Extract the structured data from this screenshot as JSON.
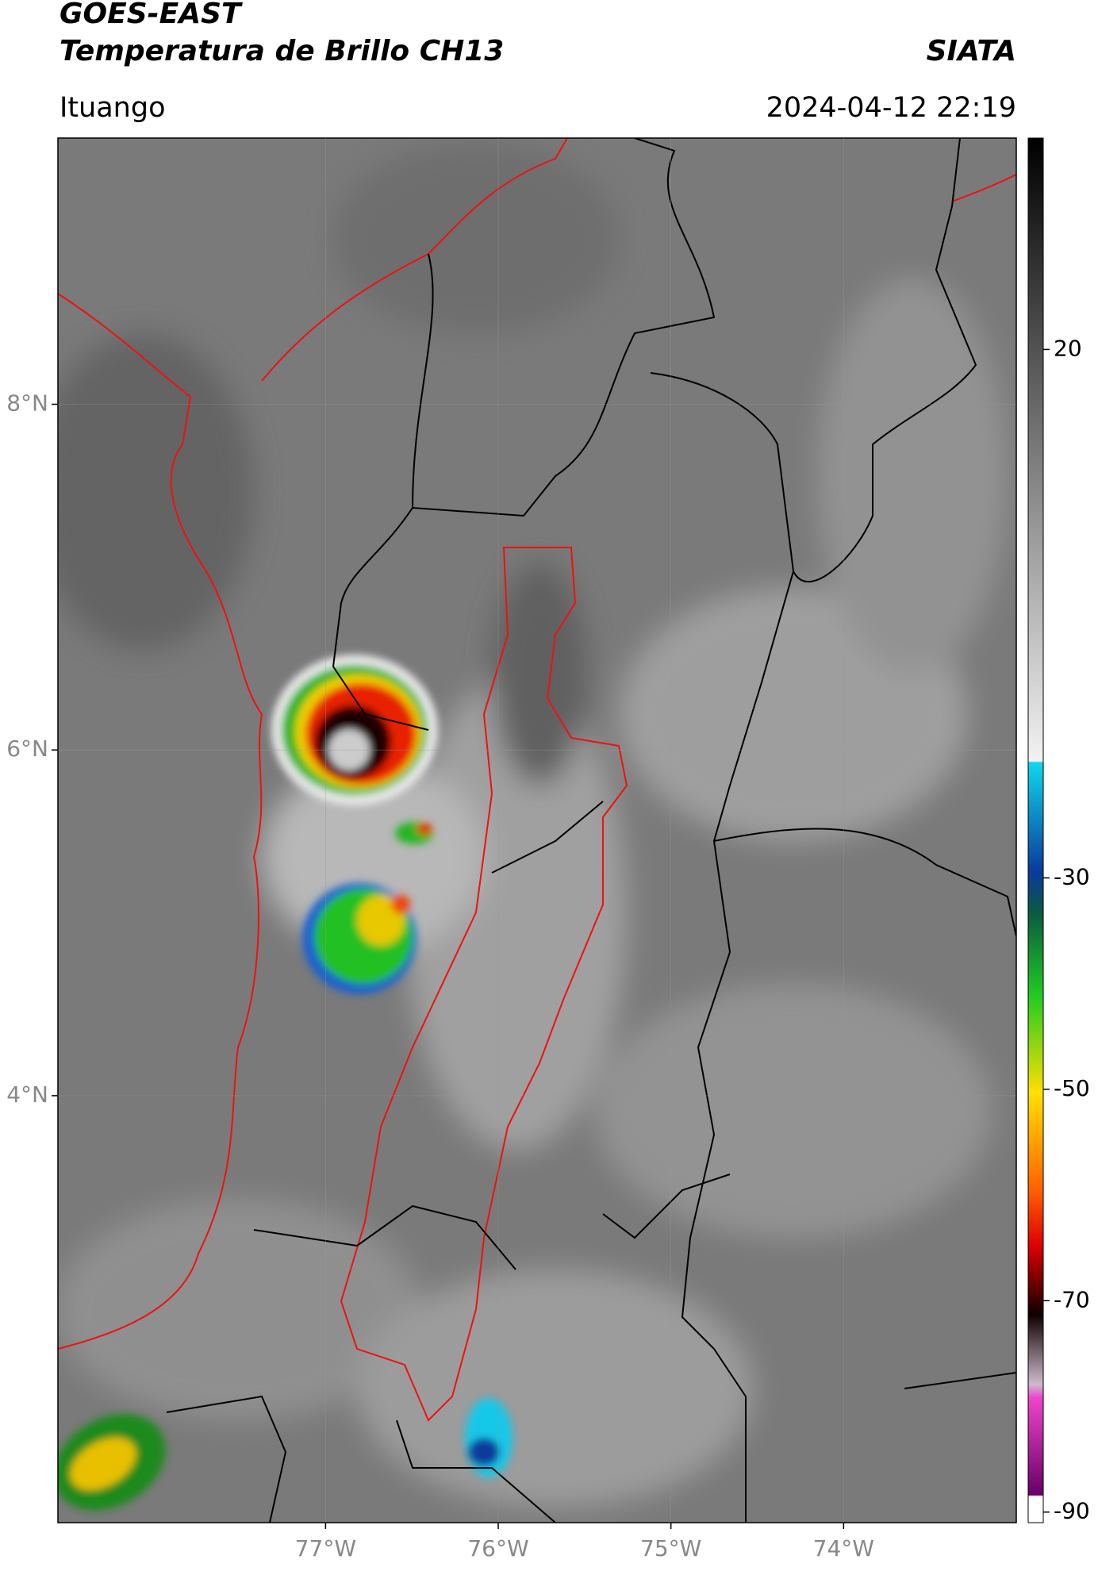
{
  "header": {
    "title": "GOES-EAST",
    "subtitle": "Temperatura de Brillo CH13",
    "agency": "SIATA",
    "location": "Ituango",
    "timestamp": "2024-04-12 22:19"
  },
  "map": {
    "latlim": [
      1.53,
      9.54
    ],
    "lonlim": [
      -78.55,
      -73.0
    ],
    "lat_ticks": [
      {
        "value": 8,
        "label": "8°N"
      },
      {
        "value": 6,
        "label": "6°N"
      },
      {
        "value": 4,
        "label": "4°N"
      }
    ],
    "lon_ticks": [
      {
        "value": -77,
        "label": "77°W"
      },
      {
        "value": -76,
        "label": "76°W"
      },
      {
        "value": -75,
        "label": "75°W"
      },
      {
        "value": -74,
        "label": "74°W"
      }
    ],
    "colorbar": {
      "lim": [
        -91,
        40
      ],
      "ticks": [
        20,
        -30,
        -50,
        -70,
        -90
      ]
    }
  }
}
